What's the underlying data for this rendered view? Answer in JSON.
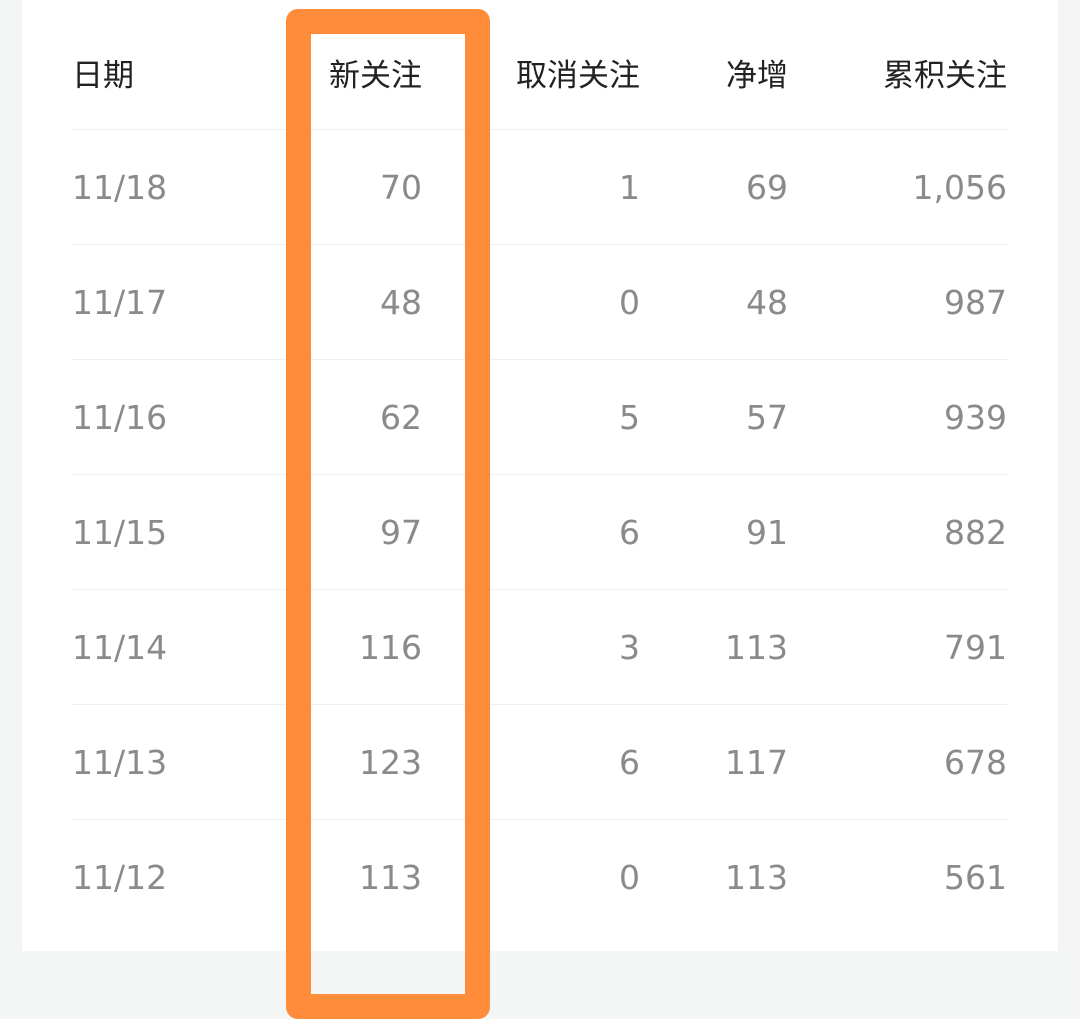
{
  "table": {
    "headers": [
      "日期",
      "新关注",
      "取消关注",
      "净增",
      "累积关注"
    ],
    "rows": [
      [
        "11/18",
        "70",
        "1",
        "69",
        "1,056"
      ],
      [
        "11/17",
        "48",
        "0",
        "48",
        "987"
      ],
      [
        "11/16",
        "62",
        "5",
        "57",
        "939"
      ],
      [
        "11/15",
        "97",
        "6",
        "91",
        "882"
      ],
      [
        "11/14",
        "116",
        "3",
        "113",
        "791"
      ],
      [
        "11/13",
        "123",
        "6",
        "117",
        "678"
      ],
      [
        "11/12",
        "113",
        "0",
        "113",
        "561"
      ]
    ]
  },
  "highlight": {
    "column": "新关注",
    "color": "#ff8c3a"
  }
}
